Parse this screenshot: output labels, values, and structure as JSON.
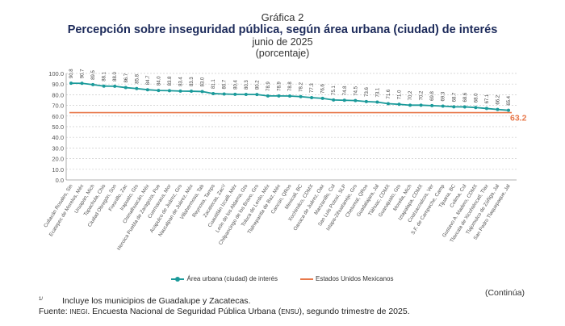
{
  "header": {
    "label": "Gráfica 2",
    "title": "Percepción sobre inseguridad pública, según área urbana (ciudad) de interés",
    "subtitle": "junio de 2025",
    "unit": "(porcentaje)"
  },
  "chart_data": {
    "type": "line",
    "title": "Percepción sobre inseguridad pública, según área urbana (ciudad) de interés",
    "ylim": [
      0,
      100
    ],
    "yticks": [
      "0.0",
      "10.0",
      "20.0",
      "30.0",
      "40.0",
      "50.0",
      "60.0",
      "70.0",
      "80.0",
      "90.0",
      "100.0"
    ],
    "grid": true,
    "legend_position": "bottom",
    "categories": [
      "Culiacán Rosales, Sin",
      "Ecatepec de Morelos, Méx",
      "Uruapan, Mich",
      "Tapachula, Chis",
      "Ciudad Obregón, Son",
      "Fresnillo, Zac",
      "Irapuato, Gto",
      "Chimalhuacán, Méx",
      "Heroica Puebla de Zaragoza, Pue",
      "Cuernavaca, Mor",
      "Acapulco de Juárez, Gro",
      "Naucalpan de Juárez, Méx",
      "Villahermosa, Tab",
      "Reynosa, Tamps",
      "Zacatecas, Zac¹/",
      "Cuautitlán Izcalli, Méx",
      "León de los Aldama, Gto",
      "Chilpancingo de los Bravo, Gro",
      "Toluca de Lerdo, Méx",
      "Tlalnepantla de Baz, Méx",
      "Cancún, QRoo",
      "Mexicali, BC",
      "Xochimilco, CDMX",
      "Oaxaca de Juárez, Oax",
      "Manzanillo, Col",
      "San Luis Potosí, SLP",
      "Ixtapa-Zihuatanejo, Gro",
      "Chetumal, QRoo",
      "Guadalajara, Jal",
      "Tláhuac, CDMX",
      "Guanajuato, Gto",
      "Morelia, Mich",
      "Iztapalapa, CDMX",
      "Coatzacoalcos, Ver",
      "S.F. de Campeche, Camp",
      "Tijuana, BC",
      "Colima, Col",
      "Gustavo A. Madero, CDMX",
      "Tlaxcala de Xicohténcatl, Tlax",
      "Tlajomulco de Zúñiga, Jal",
      "San Pedro Tlaquepaque, Jal"
    ],
    "series": [
      {
        "name": "Área urbana (ciudad) de interés",
        "color": "#1a9a9a",
        "values": [
          90.8,
          90.7,
          89.5,
          88.1,
          88.0,
          86.7,
          85.8,
          84.7,
          84.0,
          83.8,
          83.4,
          83.3,
          83.0,
          81.1,
          80.7,
          80.4,
          80.3,
          80.2,
          78.9,
          78.9,
          78.8,
          78.2,
          77.3,
          76.6,
          75.1,
          74.8,
          74.5,
          73.6,
          73.1,
          71.6,
          71.0,
          70.2,
          70.2,
          69.8,
          69.3,
          68.7,
          68.6,
          68.0,
          67.1,
          66.2,
          65.4
        ]
      },
      {
        "name": "Estados Unidos Mexicanos",
        "color": "#e8784a",
        "value": 63.2,
        "label": "63.2"
      }
    ]
  },
  "footer": {
    "continues": "(Continúa)",
    "note_mark": "1/",
    "note": "Incluye los municipios de Guadalupe y Zacatecas.",
    "source_prefix": "Fuente:",
    "source_org": "INEGI",
    "source_mid": ". Encuesta Nacional de Seguridad Pública Urbana (",
    "source_abbr": "ENSU",
    "source_end": "), segundo trimestre de 2025."
  }
}
